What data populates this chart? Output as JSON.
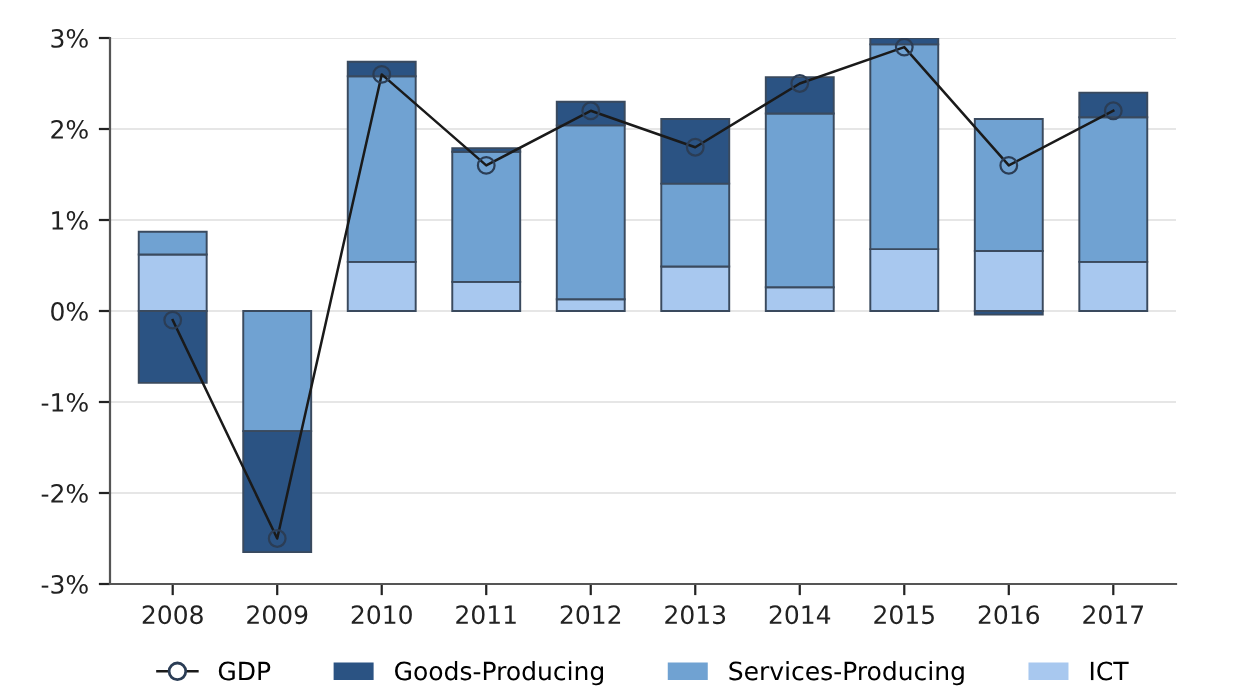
{
  "chart_data": {
    "type": "bar",
    "stacked": true,
    "categories": [
      "2008",
      "2009",
      "2010",
      "2011",
      "2012",
      "2013",
      "2014",
      "2015",
      "2016",
      "2017"
    ],
    "series": [
      {
        "name": "ICT",
        "color": "#a8c8ef",
        "values": [
          0.62,
          null,
          0.54,
          0.32,
          0.13,
          0.49,
          0.26,
          0.68,
          0.66,
          0.54
        ]
      },
      {
        "name": "Services-Producing",
        "color": "#70a2d2",
        "values": [
          0.25,
          -1.32,
          2.04,
          1.43,
          1.91,
          0.91,
          1.91,
          2.25,
          1.45,
          1.59
        ]
      },
      {
        "name": "Goods-Producing",
        "color": "#2b5383",
        "values": [
          -0.79,
          -1.33,
          0.16,
          0.04,
          0.26,
          0.71,
          0.4,
          0.07,
          -0.04,
          0.27
        ]
      },
      {
        "name": "GDP",
        "type": "line",
        "color": "#1a1a1a",
        "marker": "circle",
        "values": [
          -0.1,
          -2.5,
          2.6,
          1.6,
          2.2,
          1.8,
          2.5,
          2.9,
          1.6,
          2.2
        ]
      }
    ],
    "ylim": [
      -3,
      3
    ],
    "yticks": [
      {
        "value": -3,
        "label": "-3%"
      },
      {
        "value": -2,
        "label": "-2%"
      },
      {
        "value": -1,
        "label": "-1%"
      },
      {
        "value": 0,
        "label": "0%"
      },
      {
        "value": 1,
        "label": "1%"
      },
      {
        "value": 2,
        "label": "2%"
      },
      {
        "value": 3,
        "label": "3%"
      }
    ],
    "grid": "y",
    "legend": "bottom"
  }
}
